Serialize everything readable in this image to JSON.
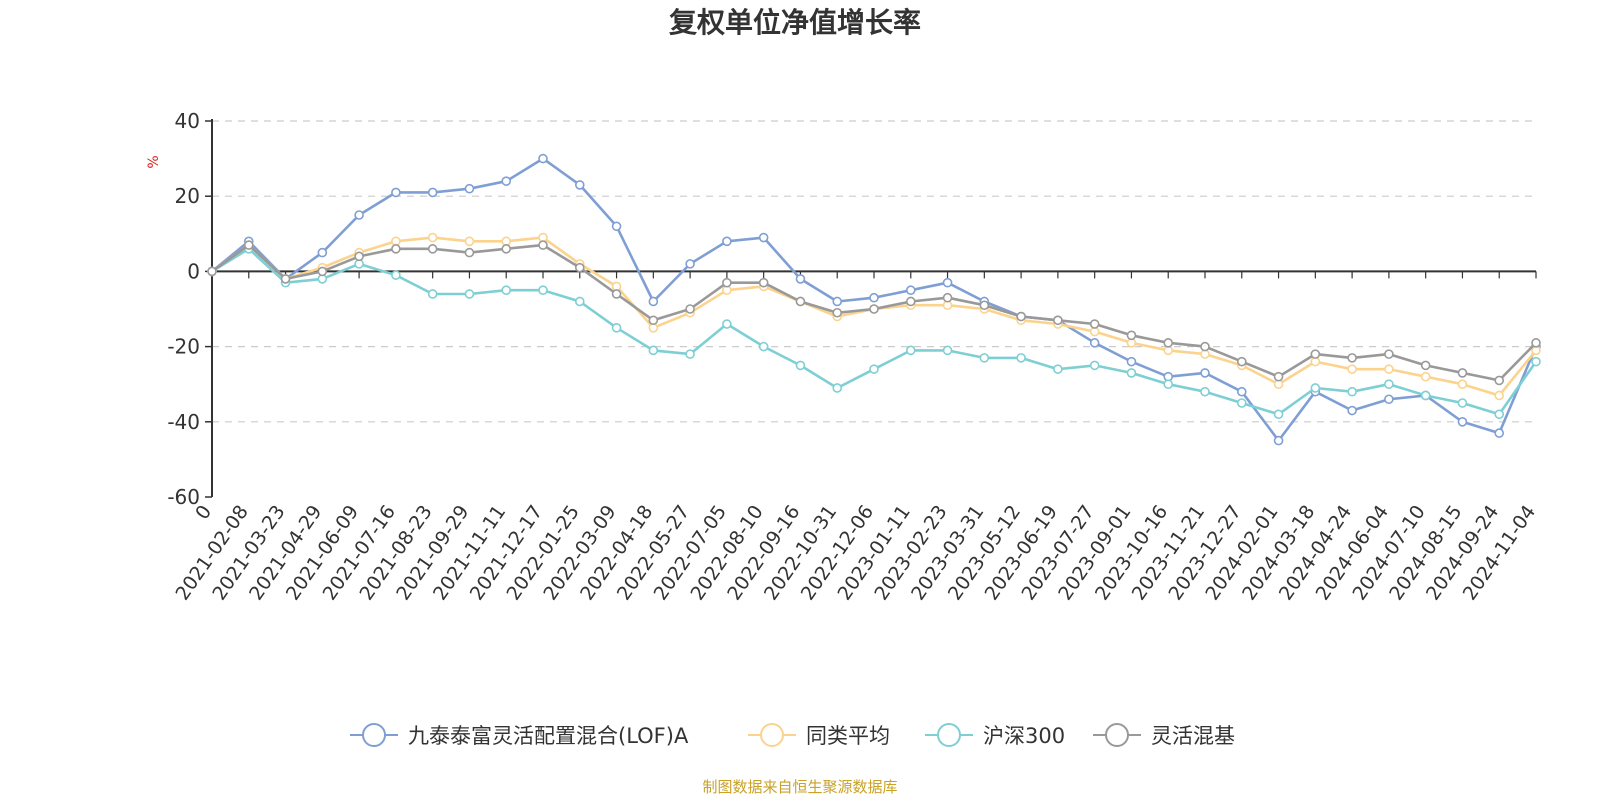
{
  "chart_data": {
    "type": "line",
    "title": "复权单位净值增长率",
    "ylabel": "%",
    "xlabel": "",
    "ylim": [
      -60,
      40
    ],
    "yticks": [
      40,
      20,
      0,
      -20,
      -40,
      -60
    ],
    "grid": true,
    "legend_position": "bottom",
    "source": "制图数据来自恒生聚源数据库",
    "categories": [
      "0",
      "2021-02-08",
      "2021-03-23",
      "2021-04-29",
      "2021-06-09",
      "2021-07-16",
      "2021-08-23",
      "2021-09-29",
      "2021-11-11",
      "2021-12-17",
      "2022-01-25",
      "2022-03-09",
      "2022-04-18",
      "2022-05-27",
      "2022-07-05",
      "2022-08-10",
      "2022-09-16",
      "2022-10-31",
      "2022-12-06",
      "2023-01-11",
      "2023-02-23",
      "2023-03-31",
      "2023-05-12",
      "2023-06-19",
      "2023-07-27",
      "2023-09-01",
      "2023-10-16",
      "2023-11-21",
      "2023-12-27",
      "2024-02-01",
      "2024-03-18",
      "2024-04-24",
      "2024-06-04",
      "2024-07-10",
      "2024-08-15",
      "2024-09-24",
      "2024-11-04"
    ],
    "series": [
      {
        "name": "九泰泰富灵活配置混合(LOF)A",
        "color": "#7f9fd4",
        "values": [
          0,
          8,
          -2,
          5,
          15,
          21,
          21,
          22,
          24,
          30,
          23,
          12,
          -8,
          2,
          8,
          9,
          -2,
          -8,
          -7,
          -5,
          -3,
          -8,
          -12,
          -13,
          -19,
          -24,
          -28,
          -27,
          -32,
          -45,
          -32,
          -37,
          -34,
          -33,
          -40,
          -43,
          -20
        ]
      },
      {
        "name": "同类平均",
        "color": "#fbd38d",
        "values": [
          0,
          7,
          -2,
          1,
          5,
          8,
          9,
          8,
          8,
          9,
          2,
          -4,
          -15,
          -11,
          -5,
          -4,
          -8,
          -12,
          -10,
          -9,
          -9,
          -10,
          -13,
          -14,
          -16,
          -19,
          -21,
          -22,
          -25,
          -30,
          -24,
          -26,
          -26,
          -28,
          -30,
          -33,
          -21
        ]
      },
      {
        "name": "沪深300",
        "color": "#7ecfd4",
        "values": [
          0,
          6,
          -3,
          -2,
          2,
          -1,
          -6,
          -6,
          -5,
          -5,
          -8,
          -15,
          -21,
          -22,
          -14,
          -20,
          -25,
          -31,
          -26,
          -21,
          -21,
          -23,
          -23,
          -26,
          -25,
          -27,
          -30,
          -32,
          -35,
          -38,
          -31,
          -32,
          -30,
          -33,
          -35,
          -38,
          -24
        ]
      },
      {
        "name": "灵活混基",
        "color": "#999999",
        "values": [
          0,
          7,
          -2,
          0,
          4,
          6,
          6,
          5,
          6,
          7,
          1,
          -6,
          -13,
          -10,
          -3,
          -3,
          -8,
          -11,
          -10,
          -8,
          -7,
          -9,
          -12,
          -13,
          -14,
          -17,
          -19,
          -20,
          -24,
          -28,
          -22,
          -23,
          -22,
          -25,
          -27,
          -29,
          -19
        ]
      }
    ]
  }
}
